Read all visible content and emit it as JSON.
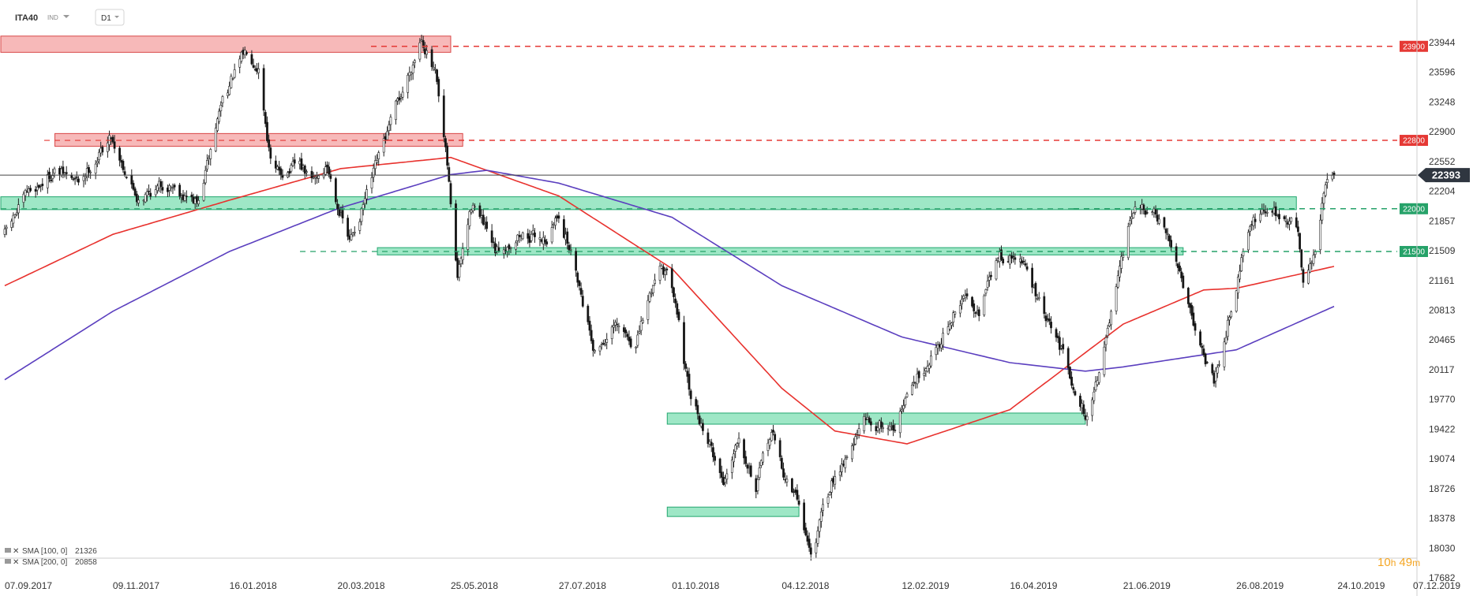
{
  "header": {
    "ticker": "ITA40",
    "subtype": "IND",
    "timeframe": "D1"
  },
  "colors": {
    "candle_up": "#ffffff",
    "candle_down": "#111111",
    "sma100": "#e8322e",
    "sma200": "#5b3fbf",
    "resistance_zone": "#f08080",
    "support_zone": "#3ecf8e",
    "resistance_line": "#e53935",
    "support_line": "#26a269",
    "current_label": "#2f3640"
  },
  "legend": [
    {
      "name": "SMA [100, 0]",
      "value": "21326",
      "color": "#e8322e"
    },
    {
      "name": "SMA [200, 0]",
      "value": "20858",
      "color": "#5b3fbf"
    }
  ],
  "timer": {
    "hours": "10",
    "h": "h",
    "minutes": "49",
    "m": "m"
  },
  "chart_data": {
    "type": "candlestick",
    "y_ticks": [
      "23944",
      "23596",
      "23248",
      "22900",
      "22552",
      "22204",
      "21857",
      "21509",
      "21161",
      "20813",
      "20465",
      "20117",
      "19770",
      "19422",
      "19074",
      "18726",
      "18378",
      "18030",
      "17682"
    ],
    "ylim": [
      17682,
      24300
    ],
    "x_ticks": [
      "07.09.2017",
      "09.11.2017",
      "16.01.2018",
      "20.03.2018",
      "25.05.2018",
      "27.07.2018",
      "01.10.2018",
      "04.12.2018",
      "12.02.2019",
      "16.04.2019",
      "21.06.2019",
      "26.08.2019",
      "24.10.2019",
      "07.12.2019"
    ],
    "current_price": "22393",
    "levels": [
      {
        "value": 23900,
        "label": "23900",
        "kind": "resistance"
      },
      {
        "value": 22800,
        "label": "22800",
        "kind": "resistance"
      },
      {
        "value": 22000,
        "label": "22000",
        "kind": "support"
      },
      {
        "value": 21500,
        "label": "21500",
        "kind": "support"
      }
    ],
    "zones": [
      {
        "from": "07.09.2017",
        "to": "25.05.2018",
        "low": 23830,
        "high": 24020,
        "kind": "resistance"
      },
      {
        "from": "09.10.2017",
        "to": "01.06.2018",
        "low": 22730,
        "high": 22880,
        "kind": "resistance"
      },
      {
        "from": "07.09.2017",
        "to": "30.09.2019",
        "low": 21990,
        "high": 22140,
        "kind": "support"
      },
      {
        "from": "15.04.2018",
        "to": "26.07.2019",
        "low": 21460,
        "high": 21545,
        "kind": "support"
      },
      {
        "from": "01.10.2018",
        "to": "30.05.2019",
        "low": 19480,
        "high": 19610,
        "kind": "support"
      },
      {
        "from": "01.10.2018",
        "to": "14.12.2018",
        "low": 18400,
        "high": 18510,
        "kind": "support"
      }
    ],
    "series": [
      {
        "name": "ITA40",
        "anchors": [
          [
            "07.09.2017",
            21700
          ],
          [
            "20.09.2017",
            22150
          ],
          [
            "06.10.2017",
            22450
          ],
          [
            "20.10.2017",
            22300
          ],
          [
            "08.11.2017",
            22850
          ],
          [
            "23.11.2017",
            22150
          ],
          [
            "13.12.2017",
            22300
          ],
          [
            "29.12.2017",
            22050
          ],
          [
            "12.01.2018",
            23300
          ],
          [
            "26.01.2018",
            23850
          ],
          [
            "02.02.2018",
            23700
          ],
          [
            "10.02.2018",
            22400
          ],
          [
            "26.02.2018",
            22500
          ],
          [
            "05.03.2018",
            22300
          ],
          [
            "14.03.2018",
            22500
          ],
          [
            "27.03.2018",
            21600
          ],
          [
            "07.04.2018",
            22200
          ],
          [
            "17.04.2018",
            22800
          ],
          [
            "01.05.2018",
            23600
          ],
          [
            "08.05.2018",
            24050
          ],
          [
            "16.05.2018",
            23550
          ],
          [
            "23.05.2018",
            22450
          ],
          [
            "29.05.2018",
            21200
          ],
          [
            "07.06.2018",
            22100
          ],
          [
            "20.06.2018",
            21450
          ],
          [
            "03.07.2018",
            21700
          ],
          [
            "20.07.2018",
            21650
          ],
          [
            "27.07.2018",
            21950
          ],
          [
            "06.08.2018",
            21300
          ],
          [
            "17.08.2018",
            20350
          ],
          [
            "28.08.2018",
            20600
          ],
          [
            "10.09.2018",
            20400
          ],
          [
            "24.09.2018",
            21400
          ],
          [
            "03.10.2018",
            21000
          ],
          [
            "11.10.2018",
            19800
          ],
          [
            "22.10.2018",
            19300
          ],
          [
            "31.10.2018",
            18800
          ],
          [
            "09.11.2018",
            19400
          ],
          [
            "19.11.2018",
            18750
          ],
          [
            "28.11.2018",
            19400
          ],
          [
            "05.12.2018",
            18900
          ],
          [
            "14.12.2018",
            18550
          ],
          [
            "21.12.2018",
            17950
          ],
          [
            "04.01.2019",
            18900
          ],
          [
            "21.01.2019",
            19500
          ],
          [
            "07.02.2019",
            19450
          ],
          [
            "20.02.2019",
            20000
          ],
          [
            "07.03.2019",
            20500
          ],
          [
            "20.03.2019",
            20950
          ],
          [
            "29.03.2019",
            20850
          ],
          [
            "10.04.2019",
            21450
          ],
          [
            "23.04.2019",
            21400
          ],
          [
            "07.05.2019",
            20700
          ],
          [
            "17.05.2019",
            20300
          ],
          [
            "31.05.2019",
            19550
          ],
          [
            "12.06.2019",
            20550
          ],
          [
            "20.06.2019",
            21300
          ],
          [
            "27.06.2019",
            22000
          ],
          [
            "10.07.2019",
            21900
          ],
          [
            "24.07.2019",
            21300
          ],
          [
            "07.08.2019",
            20300
          ],
          [
            "13.08.2019",
            20000
          ],
          [
            "21.08.2019",
            20700
          ],
          [
            "02.09.2019",
            21800
          ],
          [
            "12.09.2019",
            22000
          ],
          [
            "23.09.2019",
            21900
          ],
          [
            "01.10.2019",
            21750
          ],
          [
            "04.10.2019",
            21200
          ],
          [
            "11.10.2019",
            21500
          ],
          [
            "16.10.2019",
            22200
          ],
          [
            "22.10.2019",
            22393
          ]
        ]
      },
      {
        "name": "SMA [100, 0]",
        "anchors": [
          [
            "07.09.2017",
            21100
          ],
          [
            "09.11.2017",
            21700
          ],
          [
            "16.01.2018",
            22100
          ],
          [
            "22.03.2018",
            22470
          ],
          [
            "25.05.2018",
            22600
          ],
          [
            "27.07.2018",
            22150
          ],
          [
            "01.10.2018",
            21300
          ],
          [
            "04.12.2018",
            19900
          ],
          [
            "04.01.2019",
            19400
          ],
          [
            "15.02.2019",
            19250
          ],
          [
            "16.04.2019",
            19650
          ],
          [
            "21.06.2019",
            20650
          ],
          [
            "07.08.2019",
            21050
          ],
          [
            "26.08.2019",
            21070
          ],
          [
            "22.10.2019",
            21326
          ]
        ]
      },
      {
        "name": "SMA [200, 0]",
        "anchors": [
          [
            "07.09.2017",
            20000
          ],
          [
            "09.11.2017",
            20800
          ],
          [
            "16.01.2018",
            21500
          ],
          [
            "20.03.2018",
            22000
          ],
          [
            "25.05.2018",
            22400
          ],
          [
            "15.06.2018",
            22450
          ],
          [
            "27.07.2018",
            22300
          ],
          [
            "01.10.2018",
            21900
          ],
          [
            "04.12.2018",
            21100
          ],
          [
            "12.02.2019",
            20500
          ],
          [
            "16.04.2019",
            20200
          ],
          [
            "30.05.2019",
            20100
          ],
          [
            "21.06.2019",
            20150
          ],
          [
            "26.08.2019",
            20350
          ],
          [
            "22.10.2019",
            20858
          ]
        ]
      }
    ]
  }
}
